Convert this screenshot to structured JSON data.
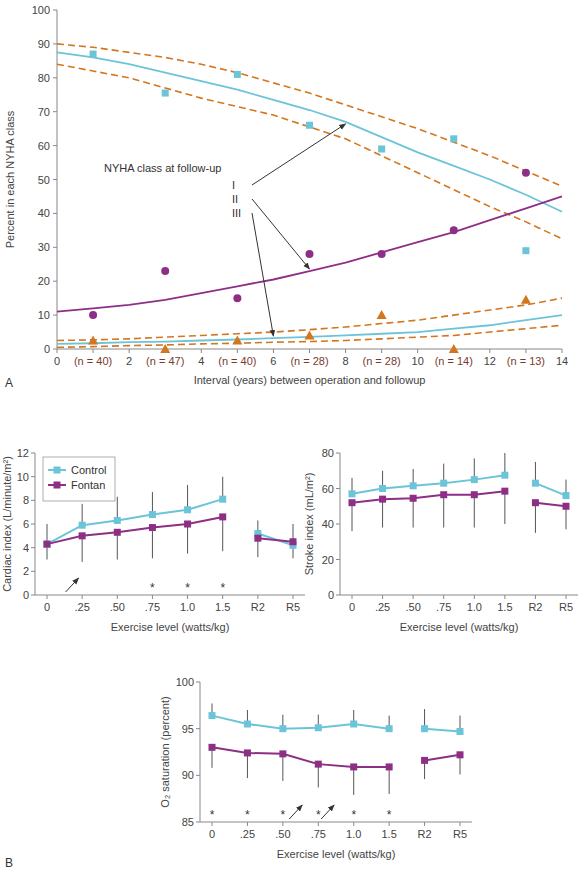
{
  "chart_data": [
    {
      "type": "line",
      "x_label": "Interval (years) between operation and followup",
      "y_label": "Percent in each NYHA class",
      "annotations": [
        {
          "text": "A"
        },
        {
          "text": "NYHA class at follow-up"
        }
      ],
      "x": [
        0,
        1,
        2,
        3,
        4,
        5,
        6,
        7,
        8,
        9,
        10,
        11,
        12,
        13,
        14
      ],
      "xlim": [
        0,
        14
      ],
      "xticks": [
        0,
        {
          "value": 1,
          "label": "(n = 40)"
        },
        2,
        {
          "value": 3,
          "label": "(n = 47)"
        },
        4,
        {
          "value": 5,
          "label": "(n = 40)"
        },
        6,
        {
          "value": 7,
          "label": "(n = 28)"
        },
        8,
        {
          "value": 9,
          "label": "(n = 28)"
        },
        10,
        {
          "value": 11,
          "label": "(n = 14)"
        },
        12,
        {
          "value": 13,
          "label": "(n = 13)"
        },
        14
      ],
      "ylim": [
        0,
        100
      ],
      "yticks": [
        0,
        10,
        20,
        30,
        40,
        50,
        60,
        70,
        80,
        90,
        100
      ],
      "series": [
        {
          "name": "I",
          "type": "scatter",
          "marker": "square",
          "color": "#6cc4d8",
          "values": [
            null,
            87,
            null,
            75.5,
            null,
            81,
            null,
            66,
            null,
            59,
            null,
            62,
            null,
            29,
            null
          ]
        },
        {
          "name": "II",
          "type": "scatter",
          "marker": "circle",
          "color": "#8e2f86",
          "values": [
            null,
            10,
            null,
            23,
            null,
            15,
            null,
            28,
            null,
            28,
            null,
            35,
            null,
            52,
            null
          ]
        },
        {
          "name": "III",
          "type": "scatter",
          "marker": "triangle",
          "color": "#d4761e",
          "values": [
            null,
            2.5,
            null,
            0,
            null,
            2.5,
            null,
            4,
            null,
            10,
            null,
            0,
            null,
            14.5,
            null
          ]
        },
        {
          "type": "line",
          "line_style": "solid",
          "color": "#6cc4d8",
          "values": [
            87.5,
            86,
            84,
            81.5,
            79,
            76.5,
            73.5,
            70.5,
            67,
            62.5,
            58,
            54,
            50,
            45.5,
            40.5
          ]
        },
        {
          "type": "line",
          "line_style": "dashed",
          "color": "#d4761e",
          "values": [
            90,
            89,
            87.5,
            86,
            84,
            81.5,
            78.5,
            75.5,
            72,
            68.5,
            65,
            61,
            57,
            52.5,
            48
          ]
        },
        {
          "type": "line",
          "line_style": "dashed",
          "color": "#d4761e",
          "values": [
            84,
            82,
            80,
            77,
            74,
            71.5,
            69,
            65.5,
            62,
            57,
            52,
            47,
            42,
            37.5,
            32.5
          ]
        },
        {
          "type": "line",
          "line_style": "solid",
          "color": "#8e2f86",
          "values": [
            11,
            12,
            13,
            14.5,
            16.5,
            18.5,
            20.5,
            23,
            25.5,
            28.5,
            31.5,
            34.5,
            38,
            41.5,
            45
          ]
        },
        {
          "type": "line",
          "line_style": "solid",
          "color": "#6cc4d8",
          "values": [
            1.5,
            1.7,
            2,
            2.2,
            2.5,
            2.8,
            3.2,
            3.6,
            4,
            4.5,
            5,
            6,
            7,
            8.5,
            10
          ]
        },
        {
          "type": "line",
          "line_style": "dashed",
          "color": "#d4761e",
          "values": [
            2.5,
            2.7,
            3,
            3.5,
            4,
            4.5,
            5,
            5.7,
            6.5,
            7.5,
            8.5,
            10,
            11.5,
            13,
            15
          ]
        },
        {
          "type": "line",
          "line_style": "dashed",
          "color": "#d4761e",
          "values": [
            0.5,
            0.7,
            1,
            1.2,
            1.5,
            1.7,
            2,
            2.2,
            2.5,
            3,
            3.5,
            4,
            5,
            6,
            7
          ]
        }
      ]
    },
    {
      "type": "line",
      "x_label": "Exercise level (watts/kg)",
      "y_label": "Cardiac index (L/minute/m²)",
      "legend": "upper left",
      "annotations": [
        {
          "text": "*",
          "category": ".75"
        },
        {
          "text": "*",
          "category": "1.0"
        },
        {
          "text": "*",
          "category": "1.5"
        }
      ],
      "categories": [
        "0",
        ".25",
        ".50",
        ".75",
        "1.0",
        "1.5",
        "R2",
        "R5"
      ],
      "ylim": [
        0,
        12
      ],
      "yticks": [
        0,
        2,
        4,
        6,
        8,
        10,
        12
      ],
      "series": [
        {
          "name": "Control",
          "marker": "square",
          "color": "#6cc4d8",
          "values": [
            4.3,
            5.9,
            6.3,
            6.8,
            7.2,
            8.1,
            5.2,
            4.2
          ],
          "errors": [
            1.7,
            1.8,
            2.0,
            1.9,
            2.1,
            1.9,
            1.1,
            1.1
          ]
        },
        {
          "name": "Fontan",
          "marker": "square",
          "color": "#8e2f86",
          "values": [
            4.3,
            5.0,
            5.3,
            5.7,
            6.0,
            6.6,
            4.8,
            4.5
          ],
          "errors": [
            1.3,
            2.2,
            2.3,
            2.6,
            2.5,
            2.9,
            1.6,
            1.5
          ]
        }
      ]
    },
    {
      "type": "line",
      "x_label": "Exercise level (watts/kg)",
      "y_label": "Stroke index (mL/m²)",
      "categories": [
        "0",
        ".25",
        ".50",
        ".75",
        "1.0",
        "1.5",
        "R2",
        "R5"
      ],
      "ylim": [
        0,
        80
      ],
      "yticks": [
        0,
        20,
        40,
        60,
        80
      ],
      "series": [
        {
          "name": "Control",
          "marker": "square",
          "color": "#6cc4d8",
          "values": [
            57,
            60,
            61.5,
            63,
            65,
            67.5,
            63,
            56
          ],
          "errors": [
            9,
            10,
            9.5,
            11,
            12,
            12.5,
            12,
            9
          ]
        },
        {
          "name": "Fontan",
          "marker": "square",
          "color": "#8e2f86",
          "values": [
            52,
            54,
            54.5,
            56.5,
            56.5,
            58.5,
            52,
            50
          ],
          "errors": [
            16,
            16,
            16.5,
            18.5,
            18.5,
            18.5,
            17,
            13
          ]
        }
      ]
    },
    {
      "type": "line",
      "x_label": "Exercise level (watts/kg)",
      "y_label": "O₂ saturation (percent)",
      "annotations": [
        {
          "text": "*",
          "category": "0"
        },
        {
          "text": "*",
          "category": ".25"
        },
        {
          "text": "*",
          "category": ".50"
        },
        {
          "text": "*",
          "category": ".75"
        },
        {
          "text": "*",
          "category": "1.0"
        },
        {
          "text": "*",
          "category": "1.5"
        },
        {
          "text": "B"
        }
      ],
      "categories": [
        "0",
        ".25",
        ".50",
        ".75",
        "1.0",
        "1.5",
        "R2",
        "R5"
      ],
      "ylim": [
        85,
        100
      ],
      "yticks": [
        85,
        90,
        95,
        100
      ],
      "series": [
        {
          "name": "Control",
          "marker": "square",
          "color": "#6cc4d8",
          "values": [
            96.4,
            95.5,
            95.0,
            95.1,
            95.5,
            95.0,
            95.0,
            94.7
          ],
          "errors": [
            1.3,
            1.5,
            1.5,
            1.4,
            1.5,
            1.4,
            2.1,
            1.7
          ]
        },
        {
          "name": "Fontan",
          "marker": "square",
          "color": "#8e2f86",
          "values": [
            93.0,
            92.4,
            92.3,
            91.2,
            90.9,
            90.9,
            91.6,
            92.2
          ],
          "errors": [
            2.2,
            2.7,
            2.9,
            2.5,
            3.0,
            2.9,
            2.0,
            2.1
          ]
        }
      ]
    }
  ]
}
